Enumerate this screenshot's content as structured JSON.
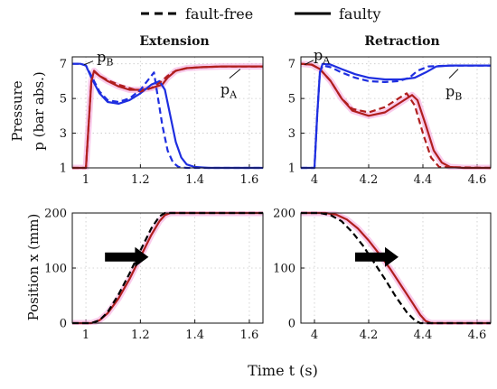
{
  "legend": {
    "fault_free": "fault-free",
    "faulty": "faulty"
  },
  "labels": {
    "pressure_line1": "Pressure",
    "pressure_line2": "p (bar abs.)",
    "position": "Position x (mm)",
    "time": "Time t (s)"
  },
  "colors": {
    "p_A": "#b01e1e",
    "p_B": "#1e2ee0",
    "position": "#b01e1e",
    "highlight": "#f7b6e4",
    "reference": "#000000",
    "arrow": "#000000"
  },
  "chart_data": [
    {
      "type": "line",
      "title": "Extension",
      "ylabel": "Pressure p (bar abs.)",
      "xlim": [
        0.95,
        1.65
      ],
      "ylim": [
        1,
        7.4
      ],
      "xticks": [
        1,
        1.2,
        1.4,
        1.6
      ],
      "yticks": [
        1,
        3,
        5,
        7
      ],
      "grid": true,
      "annotations": [
        {
          "text": "p",
          "sub": "B",
          "at": [
            1.0,
            7.0
          ]
        },
        {
          "text": "p",
          "sub": "A",
          "at": [
            1.58,
            6.9
          ]
        }
      ],
      "series": [
        {
          "name": "p_A faulty",
          "style": "solid",
          "color": "#b01e1e",
          "x": [
            0.95,
            0.99,
            1.0,
            1.01,
            1.02,
            1.03,
            1.05,
            1.08,
            1.12,
            1.16,
            1.2,
            1.24,
            1.28,
            1.3,
            1.33,
            1.37,
            1.42,
            1.5,
            1.65
          ],
          "y": [
            1.0,
            1.0,
            1.0,
            3.5,
            6.0,
            6.6,
            6.3,
            6.0,
            5.7,
            5.5,
            5.5,
            5.6,
            5.8,
            6.2,
            6.6,
            6.75,
            6.8,
            6.85,
            6.85
          ]
        },
        {
          "name": "p_A fault-free",
          "style": "dashed",
          "color": "#b01e1e",
          "x": [
            0.95,
            0.99,
            1.0,
            1.01,
            1.02,
            1.03,
            1.05,
            1.08,
            1.12,
            1.16,
            1.2,
            1.24,
            1.27,
            1.3,
            1.33,
            1.37,
            1.42,
            1.5,
            1.65
          ],
          "y": [
            1.0,
            1.0,
            1.0,
            3.5,
            6.0,
            6.55,
            6.3,
            6.05,
            5.8,
            5.6,
            5.4,
            5.6,
            5.9,
            6.3,
            6.6,
            6.75,
            6.8,
            6.85,
            6.85
          ]
        },
        {
          "name": "p_B faulty",
          "style": "solid",
          "color": "#1e2ee0",
          "x": [
            0.95,
            0.98,
            1.0,
            1.02,
            1.05,
            1.08,
            1.12,
            1.16,
            1.2,
            1.24,
            1.27,
            1.29,
            1.31,
            1.33,
            1.35,
            1.37,
            1.4,
            1.45,
            1.65
          ],
          "y": [
            7.0,
            7.0,
            6.9,
            6.2,
            5.3,
            4.8,
            4.7,
            4.9,
            5.3,
            5.8,
            6.0,
            5.5,
            4.0,
            2.5,
            1.6,
            1.2,
            1.05,
            1.0,
            1.0
          ]
        },
        {
          "name": "p_B fault-free",
          "style": "dashed",
          "color": "#1e2ee0",
          "x": [
            0.95,
            0.98,
            1.0,
            1.02,
            1.05,
            1.08,
            1.12,
            1.16,
            1.2,
            1.23,
            1.25,
            1.26,
            1.28,
            1.3,
            1.32,
            1.34,
            1.37,
            1.65
          ],
          "y": [
            7.0,
            7.0,
            6.9,
            6.3,
            5.4,
            4.9,
            4.8,
            5.0,
            5.5,
            6.1,
            6.5,
            5.5,
            3.5,
            2.0,
            1.3,
            1.05,
            1.0,
            1.0
          ]
        }
      ]
    },
    {
      "type": "line",
      "title": "Retraction",
      "xlim": [
        3.95,
        4.65
      ],
      "ylim": [
        1,
        7.4
      ],
      "xticks": [
        4,
        4.2,
        4.4,
        4.6
      ],
      "yticks": [
        1,
        3,
        5,
        7
      ],
      "grid": true,
      "annotations": [
        {
          "text": "p",
          "sub": "A",
          "at": [
            3.97,
            7.0
          ]
        },
        {
          "text": "p",
          "sub": "B",
          "at": [
            4.55,
            6.9
          ]
        }
      ],
      "series": [
        {
          "name": "p_A faulty",
          "style": "solid",
          "color": "#b01e1e",
          "x": [
            3.95,
            3.99,
            4.02,
            4.06,
            4.1,
            4.14,
            4.2,
            4.26,
            4.32,
            4.36,
            4.38,
            4.41,
            4.44,
            4.47,
            4.5,
            4.55,
            4.65
          ],
          "y": [
            7.0,
            6.95,
            6.7,
            6.0,
            5.0,
            4.3,
            4.0,
            4.2,
            4.8,
            5.2,
            4.9,
            3.5,
            2.0,
            1.3,
            1.05,
            1.0,
            1.0
          ]
        },
        {
          "name": "p_A fault-free",
          "style": "dashed",
          "color": "#b01e1e",
          "x": [
            3.95,
            3.99,
            4.02,
            4.06,
            4.1,
            4.14,
            4.2,
            4.26,
            4.31,
            4.34,
            4.37,
            4.4,
            4.43,
            4.46,
            4.65
          ],
          "y": [
            7.0,
            6.95,
            6.7,
            6.0,
            5.0,
            4.4,
            4.2,
            4.5,
            5.0,
            5.3,
            4.6,
            3.0,
            1.6,
            1.05,
            1.0
          ]
        },
        {
          "name": "p_B faulty",
          "style": "solid",
          "color": "#1e2ee0",
          "x": [
            3.95,
            4.0,
            4.01,
            4.02,
            4.03,
            4.06,
            4.1,
            4.15,
            4.2,
            4.26,
            4.32,
            4.37,
            4.41,
            4.45,
            4.5,
            4.65
          ],
          "y": [
            1.0,
            1.0,
            4.0,
            6.5,
            7.0,
            6.95,
            6.7,
            6.4,
            6.2,
            6.1,
            6.1,
            6.2,
            6.5,
            6.85,
            6.9,
            6.9
          ]
        },
        {
          "name": "p_B fault-free",
          "style": "dashed",
          "color": "#1e2ee0",
          "x": [
            3.95,
            4.0,
            4.01,
            4.02,
            4.03,
            4.06,
            4.1,
            4.15,
            4.2,
            4.26,
            4.31,
            4.35,
            4.38,
            4.42,
            4.5,
            4.65
          ],
          "y": [
            1.0,
            1.0,
            4.0,
            6.5,
            6.9,
            6.8,
            6.5,
            6.2,
            6.0,
            5.95,
            6.0,
            6.2,
            6.6,
            6.85,
            6.9,
            6.9
          ]
        }
      ]
    },
    {
      "type": "line",
      "ylabel": "Position x (mm)",
      "xlim": [
        0.95,
        1.65
      ],
      "ylim": [
        0,
        200
      ],
      "xticks": [
        1,
        1.2,
        1.4,
        1.6
      ],
      "yticks": [
        0,
        100,
        200
      ],
      "grid": true,
      "arrow": {
        "from": [
          1.07,
          120
        ],
        "to": [
          1.23,
          120
        ]
      },
      "series": [
        {
          "name": "x faulty",
          "style": "solid",
          "color": "#b01e1e",
          "x": [
            0.95,
            1.02,
            1.05,
            1.08,
            1.12,
            1.16,
            1.2,
            1.24,
            1.27,
            1.29,
            1.31,
            1.65
          ],
          "y": [
            0,
            0,
            5,
            18,
            45,
            80,
            120,
            160,
            185,
            196,
            200,
            200
          ]
        },
        {
          "name": "x fault-free",
          "style": "dashed",
          "color": "#000000",
          "x": [
            0.95,
            1.02,
            1.05,
            1.08,
            1.12,
            1.16,
            1.2,
            1.24,
            1.27,
            1.29,
            1.65
          ],
          "y": [
            0,
            0,
            5,
            20,
            52,
            90,
            132,
            172,
            194,
            200,
            200
          ]
        }
      ]
    },
    {
      "type": "line",
      "xlim": [
        3.95,
        4.65
      ],
      "ylim": [
        0,
        200
      ],
      "xticks": [
        4,
        4.2,
        4.4,
        4.6
      ],
      "yticks": [
        0,
        100,
        200
      ],
      "grid": true,
      "arrow": {
        "from": [
          4.15,
          120
        ],
        "to": [
          4.31,
          120
        ]
      },
      "series": [
        {
          "name": "x faulty",
          "style": "solid",
          "color": "#b01e1e",
          "x": [
            3.95,
            4.04,
            4.08,
            4.12,
            4.16,
            4.2,
            4.24,
            4.28,
            4.32,
            4.36,
            4.39,
            4.41,
            4.43,
            4.65
          ],
          "y": [
            200,
            200,
            197,
            188,
            172,
            150,
            125,
            98,
            68,
            38,
            15,
            4,
            0,
            0
          ]
        },
        {
          "name": "x fault-free",
          "style": "dashed",
          "color": "#000000",
          "x": [
            3.95,
            4.02,
            4.06,
            4.1,
            4.14,
            4.18,
            4.22,
            4.26,
            4.3,
            4.34,
            4.37,
            4.39,
            4.65
          ],
          "y": [
            200,
            200,
            196,
            185,
            165,
            140,
            110,
            80,
            48,
            20,
            5,
            0,
            0
          ]
        }
      ]
    }
  ]
}
